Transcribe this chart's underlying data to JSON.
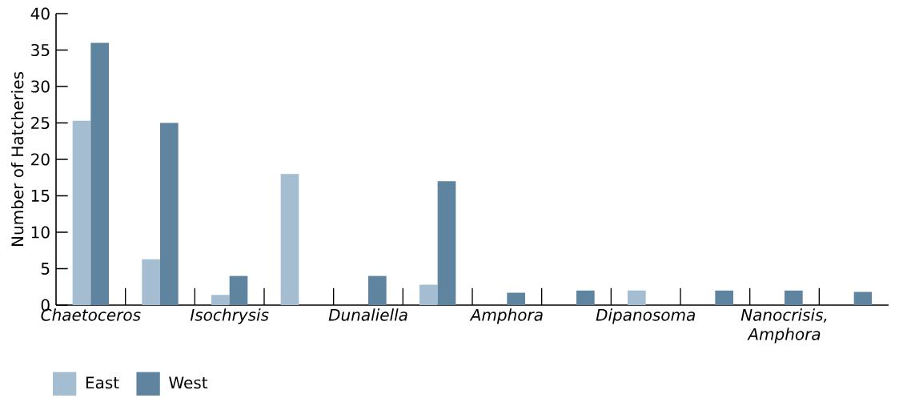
{
  "chart_data": {
    "type": "bar",
    "ylabel": "Number of Hatcheries",
    "categories": [
      "Chaetoceros",
      null,
      "Isochrysis",
      null,
      "Dunaliella",
      null,
      "Amphora",
      null,
      "Dipanosoma",
      null,
      "Nanocrisis, Amphora",
      null
    ],
    "series": [
      {
        "name": "East",
        "color": "#a5bdd0",
        "values": [
          25.3,
          6.3,
          1.4,
          18,
          null,
          2.8,
          null,
          null,
          2,
          null,
          null,
          null
        ]
      },
      {
        "name": "West",
        "color": "#5f849f",
        "values": [
          36,
          25,
          4,
          null,
          4,
          17,
          1.7,
          2,
          null,
          2,
          2,
          1.8
        ]
      }
    ],
    "ylim": [
      0,
      40
    ],
    "yticks": [
      0,
      5,
      10,
      15,
      20,
      25,
      30,
      35,
      40
    ],
    "grid": false,
    "legend": "bottom left"
  }
}
